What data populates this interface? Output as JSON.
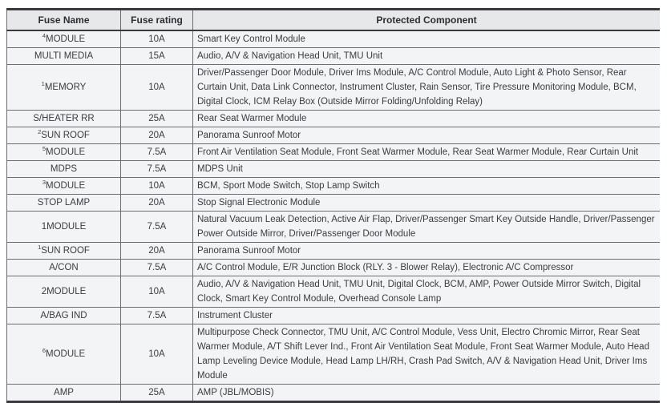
{
  "table": {
    "columns": [
      "Fuse Name",
      "Fuse rating",
      "Protected Component"
    ],
    "rows": [
      {
        "sup": "4",
        "name": "MODULE",
        "rating": "10A",
        "component": "Smart Key Control Module"
      },
      {
        "sup": "",
        "name": "MULTI MEDIA",
        "rating": "15A",
        "component": "Audio, A/V & Navigation Head Unit, TMU Unit"
      },
      {
        "sup": "1",
        "name": "MEMORY",
        "rating": "10A",
        "component": "Driver/Passenger Door Module, Driver Ims Module, A/C Control Module, Auto Light & Photo Sensor, Rear Curtain Unit, Data Link Connector, Instrument Cluster, Rain Sensor, Tire Pressure Monitoring Module, BCM, Digital Clock, ICM Relay Box (Outside Mirror Folding/Unfolding Relay)"
      },
      {
        "sup": "",
        "name": "S/HEATER RR",
        "rating": "25A",
        "component": "Rear Seat Warmer Module"
      },
      {
        "sup": "2",
        "name": "SUN ROOF",
        "rating": "20A",
        "component": "Panorama Sunroof Motor"
      },
      {
        "sup": "5",
        "name": "MODULE",
        "rating": "7.5A",
        "component": "Front Air Ventilation Seat Module, Front Seat Warmer Module, Rear Seat Warmer Module, Rear Curtain Unit"
      },
      {
        "sup": "",
        "name": "MDPS",
        "rating": "7.5A",
        "component": "MDPS Unit"
      },
      {
        "sup": "3",
        "name": "MODULE",
        "rating": "10A",
        "component": "BCM, Sport Mode Switch, Stop Lamp Switch"
      },
      {
        "sup": "",
        "name": "STOP LAMP",
        "rating": "20A",
        "component": "Stop Signal Electronic Module"
      },
      {
        "sup": "",
        "name": "1MODULE",
        "rating": "7.5A",
        "component": "Natural Vacuum Leak Detection, Active Air Flap, Driver/Passenger Smart Key Outside Handle, Driver/Passenger Power Outside Mirror, Driver/Passenger Door Module"
      },
      {
        "sup": "1",
        "name": "SUN ROOF",
        "rating": "20A",
        "component": "Panorama Sunroof Motor"
      },
      {
        "sup": "",
        "name": "A/CON",
        "rating": "7.5A",
        "component": "A/C Control Module, E/R Junction Block (RLY. 3 - Blower Relay), Electronic A/C Compressor"
      },
      {
        "sup": "",
        "name": "2MODULE",
        "rating": "10A",
        "component": "Audio, A/V & Navigation Head Unit, TMU Unit, Digital Clock, BCM, AMP, Power Outside Mirror Switch, Digital Clock, Smart Key Control Module, Overhead Console Lamp"
      },
      {
        "sup": "",
        "name": "A/BAG IND",
        "rating": "7.5A",
        "component": "Instrument Cluster"
      },
      {
        "sup": "6",
        "name": "MODULE",
        "rating": "10A",
        "component": "Multipurpose Check Connector, TMU Unit, A/C Control Module, Vess Unit, Electro Chromic Mirror, Rear Seat Warmer Module, A/T Shift Lever Ind., Front Air Ventilation Seat Module, Front Seat Warmer Module, Auto Head Lamp Leveling Device Module, Head Lamp LH/RH, Crash Pad Switch, A/V & Navigation Head Unit, Driver Ims Module"
      },
      {
        "sup": "",
        "name": "AMP",
        "rating": "25A",
        "component": "AMP (JBL/MOBIS)"
      }
    ],
    "colors": {
      "header_bg": "#e7e8ea",
      "row_bg": "#f3f4f6",
      "border_heavy": "#3a3a3e",
      "border_light": "#6d6d72",
      "text": "#3c3c40"
    }
  }
}
